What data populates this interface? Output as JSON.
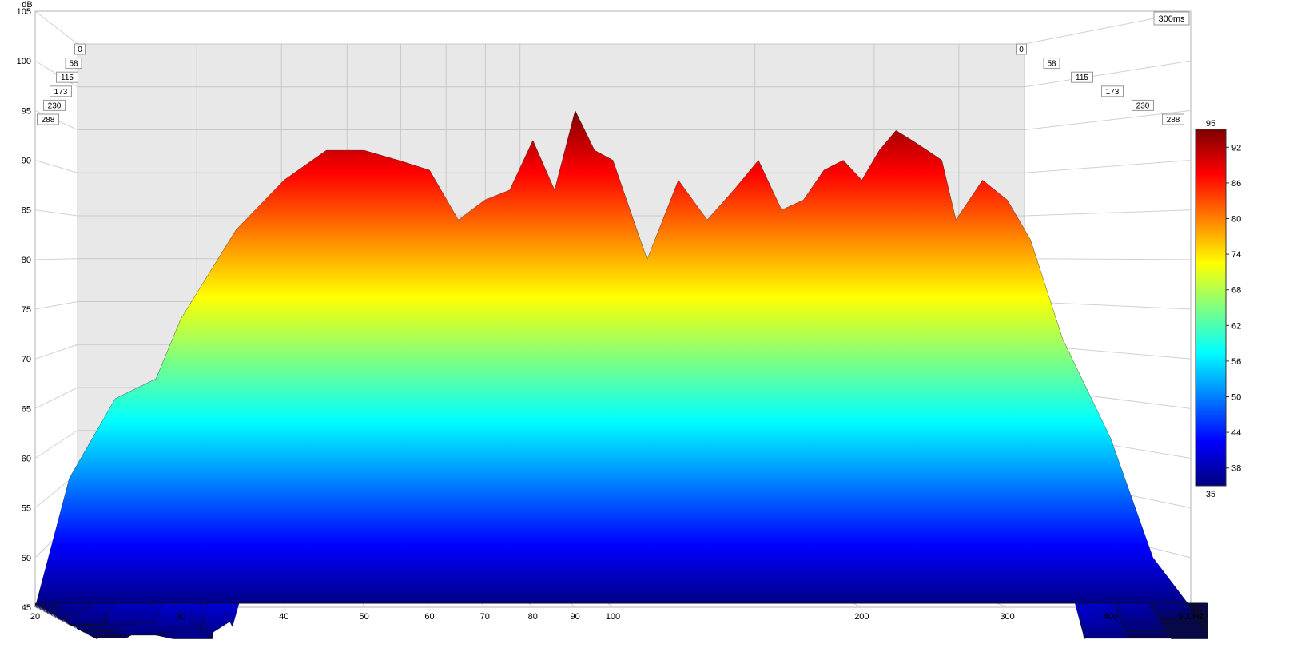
{
  "chart_data": {
    "type": "waterfall",
    "title": "",
    "ylabel": "dB",
    "yunit": "dB",
    "ylim": [
      45,
      105
    ],
    "yticks": [
      45,
      50,
      55,
      60,
      65,
      70,
      75,
      80,
      85,
      90,
      95,
      100,
      105
    ],
    "xlim": [
      20,
      500
    ],
    "xscale": "log",
    "xticks": [
      20,
      30,
      40,
      50,
      60,
      70,
      80,
      90,
      100,
      200,
      300,
      400,
      500
    ],
    "xtick_labels": [
      "20",
      "30",
      "40",
      "50",
      "60",
      "70",
      "80",
      "90",
      "100",
      "200",
      "300",
      "400",
      "500Hz"
    ],
    "time_label": "300ms",
    "time_ticks": [
      "0",
      "58",
      "115",
      "173",
      "230",
      "288"
    ],
    "colorbar": {
      "min": 35,
      "max": 95,
      "ticks": [
        38,
        44,
        50,
        56,
        62,
        68,
        74,
        80,
        86,
        92
      ],
      "min_label": "35",
      "max_label": "95",
      "colors": [
        "#00007f",
        "#0000ff",
        "#0080ff",
        "#00ffff",
        "#80ff80",
        "#ffff00",
        "#ff8000",
        "#ff0000",
        "#7f0000"
      ]
    },
    "series": [
      {
        "time_ms": 0,
        "x": [
          20,
          22,
          25,
          28,
          30,
          35,
          40,
          45,
          50,
          55,
          60,
          65,
          70,
          75,
          80,
          85,
          90,
          95,
          100,
          110,
          120,
          130,
          140,
          150,
          160,
          170,
          180,
          190,
          200,
          210,
          220,
          230,
          240,
          250,
          260,
          280,
          300,
          320,
          350,
          400,
          450,
          500
        ],
        "y": [
          45,
          58,
          66,
          68,
          74,
          83,
          88,
          91,
          91,
          90,
          89,
          84,
          86,
          87,
          92,
          87,
          95,
          91,
          90,
          80,
          88,
          84,
          87,
          90,
          85,
          86,
          89,
          90,
          88,
          91,
          93,
          92,
          91,
          90,
          84,
          88,
          86,
          82,
          72,
          62,
          50,
          45
        ]
      }
    ],
    "grid": true
  }
}
